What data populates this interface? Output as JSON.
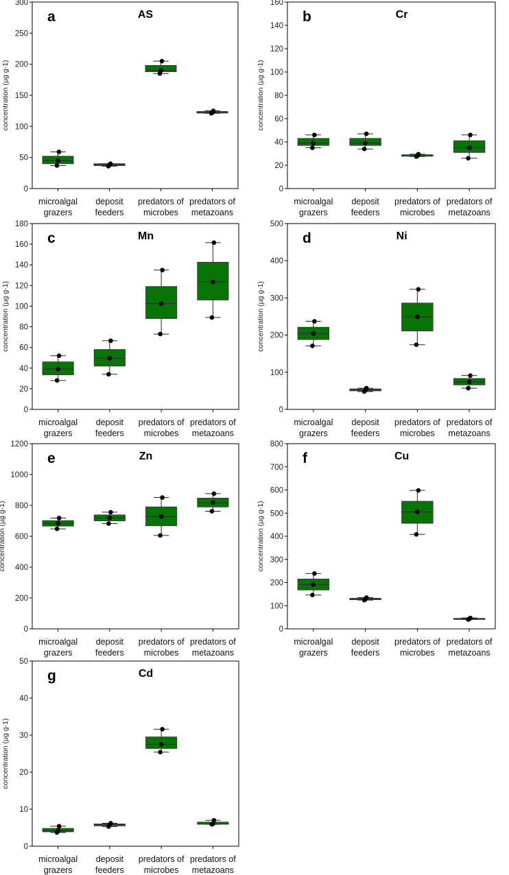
{
  "chart_data": [
    {
      "type": "box",
      "panel_letter": "a",
      "title": "AS",
      "ylabel": "concentration (µg g-1)",
      "ylim": [
        0,
        300
      ],
      "yticks": [
        0,
        50,
        100,
        150,
        200,
        250,
        300
      ],
      "categories": [
        [
          "microalgal",
          "grazers"
        ],
        [
          "deposit",
          "feeders"
        ],
        [
          "predators of",
          "microbes"
        ],
        [
          "predators of",
          "metazoans"
        ]
      ],
      "color": "#087408",
      "boxes": [
        {
          "whislo": 37,
          "q1": 40,
          "med": 45,
          "q3": 52,
          "whishi": 59,
          "points": [
            37,
            45,
            59
          ]
        },
        {
          "whislo": 36,
          "q1": 37,
          "med": 38,
          "q3": 40,
          "whishi": 40,
          "points": [
            36,
            38,
            40
          ]
        },
        {
          "whislo": 185,
          "q1": 188,
          "med": 190,
          "q3": 198,
          "whishi": 205,
          "points": [
            185,
            190,
            205
          ]
        },
        {
          "whislo": 121,
          "q1": 121.5,
          "med": 122,
          "q3": 124,
          "whishi": 125,
          "points": [
            121,
            122,
            125
          ]
        }
      ]
    },
    {
      "type": "box",
      "panel_letter": "b",
      "title": "Cr",
      "ylabel": "concentration (µg g-1)",
      "ylim": [
        0,
        160
      ],
      "yticks": [
        0,
        20,
        40,
        60,
        80,
        100,
        120,
        140,
        160
      ],
      "categories": [
        [
          "microalgal",
          "grazers"
        ],
        [
          "deposit",
          "feeders"
        ],
        [
          "predators of",
          "microbes"
        ],
        [
          "predators of",
          "metazoans"
        ]
      ],
      "color": "#087408",
      "boxes": [
        {
          "whislo": 35,
          "q1": 37,
          "med": 39,
          "q3": 43,
          "whishi": 46,
          "points": [
            35,
            39,
            46
          ]
        },
        {
          "whislo": 34,
          "q1": 37,
          "med": 39,
          "q3": 43,
          "whishi": 47,
          "points": [
            34,
            39,
            47
          ]
        },
        {
          "whislo": 27.5,
          "q1": 27.8,
          "med": 28,
          "q3": 29,
          "whishi": 29.5,
          "points": [
            27.5,
            28,
            29.5
          ]
        },
        {
          "whislo": 26,
          "q1": 31,
          "med": 35,
          "q3": 41,
          "whishi": 46,
          "points": [
            26,
            35,
            46
          ]
        }
      ]
    },
    {
      "type": "box",
      "panel_letter": "c",
      "title": "Mn",
      "ylabel": "concentration (µg g-1)",
      "ylim": [
        0,
        180
      ],
      "yticks": [
        0,
        20,
        40,
        60,
        80,
        100,
        120,
        140,
        160,
        180
      ],
      "categories": [
        [
          "microalgal",
          "grazers"
        ],
        [
          "deposit",
          "feeders"
        ],
        [
          "predators of",
          "microbes"
        ],
        [
          "predators of",
          "metazoans"
        ]
      ],
      "color": "#087408",
      "boxes": [
        {
          "whislo": 28,
          "q1": 33.5,
          "med": 39,
          "q3": 46,
          "whishi": 52,
          "points": [
            28,
            39,
            52
          ]
        },
        {
          "whislo": 34,
          "q1": 42,
          "med": 49.5,
          "q3": 58,
          "whishi": 66.5,
          "points": [
            34,
            49.5,
            66.5
          ]
        },
        {
          "whislo": 73,
          "q1": 88,
          "med": 102.5,
          "q3": 119,
          "whishi": 135,
          "points": [
            73,
            102.5,
            135
          ]
        },
        {
          "whislo": 89,
          "q1": 106,
          "med": 123.5,
          "q3": 142.5,
          "whishi": 161.5,
          "points": [
            89,
            123.5,
            161.5
          ]
        }
      ]
    },
    {
      "type": "box",
      "panel_letter": "d",
      "title": "Ni",
      "ylabel": "concentration (µg g-1)",
      "ylim": [
        0,
        500
      ],
      "yticks": [
        0,
        100,
        200,
        300,
        400,
        500
      ],
      "categories": [
        [
          "microalgal",
          "grazers"
        ],
        [
          "deposit",
          "feeders"
        ],
        [
          "predators of",
          "microbes"
        ],
        [
          "predators of",
          "metazoans"
        ]
      ],
      "color": "#087408",
      "boxes": [
        {
          "whislo": 171,
          "q1": 188,
          "med": 204,
          "q3": 221,
          "whishi": 237,
          "points": [
            171,
            204,
            237
          ]
        },
        {
          "whislo": 48,
          "q1": 50,
          "med": 52,
          "q3": 55,
          "whishi": 57,
          "points": [
            48,
            52,
            57
          ]
        },
        {
          "whislo": 174,
          "q1": 211,
          "med": 249,
          "q3": 286,
          "whishi": 323,
          "points": [
            174,
            249,
            323
          ]
        },
        {
          "whislo": 57,
          "q1": 66,
          "med": 74,
          "q3": 83,
          "whishi": 91,
          "points": [
            57,
            74,
            91
          ]
        }
      ]
    },
    {
      "type": "box",
      "panel_letter": "e",
      "title": "Zn",
      "ylabel": "concentration (µg g-1)",
      "ylim": [
        0,
        1200
      ],
      "yticks": [
        0,
        200,
        400,
        600,
        800,
        1000,
        1200
      ],
      "categories": [
        [
          "microalgal",
          "grazers"
        ],
        [
          "deposit",
          "feeders"
        ],
        [
          "predators of",
          "microbes"
        ],
        [
          "predators of",
          "metazoans"
        ]
      ],
      "color": "#087408",
      "boxes": [
        {
          "whislo": 648,
          "q1": 666,
          "med": 683,
          "q3": 701,
          "whishi": 718,
          "points": [
            648,
            683,
            718
          ]
        },
        {
          "whislo": 682,
          "q1": 700,
          "med": 719,
          "q3": 738,
          "whishi": 756,
          "points": [
            682,
            719,
            756
          ]
        },
        {
          "whislo": 605,
          "q1": 668,
          "med": 728,
          "q3": 790,
          "whishi": 851,
          "points": [
            605,
            728,
            851
          ]
        },
        {
          "whislo": 762,
          "q1": 790,
          "med": 818,
          "q3": 847,
          "whishi": 876,
          "points": [
            762,
            818,
            876
          ]
        }
      ]
    },
    {
      "type": "box",
      "panel_letter": "f",
      "title": "Cu",
      "ylabel": "concentration (µg g-1)",
      "ylim": [
        0,
        800
      ],
      "yticks": [
        0,
        100,
        200,
        300,
        400,
        500,
        600,
        700,
        800
      ],
      "categories": [
        [
          "microalgal",
          "grazers"
        ],
        [
          "deposit",
          "feeders"
        ],
        [
          "predators of",
          "microbes"
        ],
        [
          "predators of",
          "metazoans"
        ]
      ],
      "color": "#087408",
      "boxes": [
        {
          "whislo": 146,
          "q1": 168,
          "med": 191,
          "q3": 215,
          "whishi": 239,
          "points": [
            146,
            191,
            239
          ]
        },
        {
          "whislo": 124,
          "q1": 126,
          "med": 128,
          "q3": 132,
          "whishi": 135,
          "points": [
            124,
            128,
            135
          ]
        },
        {
          "whislo": 408,
          "q1": 456,
          "med": 505,
          "q3": 551,
          "whishi": 598,
          "points": [
            408,
            505,
            598
          ]
        },
        {
          "whislo": 40,
          "q1": 41,
          "med": 43,
          "q3": 45,
          "whishi": 47,
          "points": [
            40,
            43,
            47
          ]
        }
      ]
    },
    {
      "type": "box",
      "panel_letter": "g",
      "title": "Cd",
      "ylabel": "concentration (µg g-1)",
      "ylim": [
        0,
        50
      ],
      "yticks": [
        0,
        10,
        20,
        30,
        40,
        50
      ],
      "categories": [
        [
          "microalgal",
          "grazers"
        ],
        [
          "deposit",
          "feeders"
        ],
        [
          "predators of",
          "microbes"
        ],
        [
          "predators of",
          "metazoans"
        ]
      ],
      "color": "#087408",
      "boxes": [
        {
          "whislo": 3.7,
          "q1": 3.9,
          "med": 4.2,
          "q3": 4.8,
          "whishi": 5.4,
          "points": [
            3.7,
            4.2,
            5.4
          ]
        },
        {
          "whislo": 5.3,
          "q1": 5.5,
          "med": 5.8,
          "q3": 6.0,
          "whishi": 6.2,
          "points": [
            5.3,
            5.8,
            6.2
          ]
        },
        {
          "whislo": 25.4,
          "q1": 26.4,
          "med": 27.5,
          "q3": 29.5,
          "whishi": 31.6,
          "points": [
            25.4,
            27.5,
            31.6
          ]
        },
        {
          "whislo": 5.9,
          "q1": 5.95,
          "med": 6.0,
          "q3": 6.5,
          "whishi": 7.0,
          "points": [
            5.9,
            6.0,
            7.0
          ]
        }
      ]
    }
  ]
}
